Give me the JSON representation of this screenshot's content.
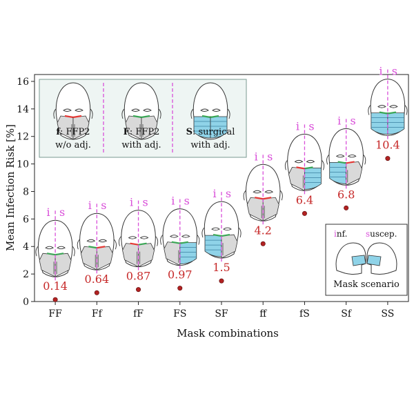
{
  "chart_data": {
    "type": "scatter",
    "xlabel": "Mask combinations",
    "ylabel": "Mean Infection Risk [%]",
    "ylim": [
      0,
      16.5
    ],
    "yticks": [
      0,
      2,
      4,
      6,
      8,
      10,
      12,
      14,
      16
    ],
    "categories": [
      "FF",
      "Ff",
      "fF",
      "FS",
      "SF",
      "ff",
      "fS",
      "Sf",
      "SS"
    ],
    "values": [
      0.14,
      0.64,
      0.87,
      0.97,
      1.5,
      4.2,
      6.4,
      6.8,
      10.4
    ],
    "value_labels": [
      "0.14",
      "0.64",
      "0.87",
      "0.97",
      "1.5",
      "4.2",
      "6.4",
      "6.8",
      "10.4"
    ],
    "point_color": "#b22222",
    "label_color": "#c62828",
    "divider_color": "#d94fd9",
    "mask_pairs": [
      [
        "ffp2_adj",
        "ffp2_adj"
      ],
      [
        "ffp2_adj",
        "ffp2"
      ],
      [
        "ffp2",
        "ffp2_adj"
      ],
      [
        "ffp2_adj",
        "surgical"
      ],
      [
        "surgical",
        "ffp2_adj"
      ],
      [
        "ffp2",
        "ffp2"
      ],
      [
        "ffp2",
        "surgical"
      ],
      [
        "surgical",
        "ffp2"
      ],
      [
        "surgical",
        "surgical"
      ]
    ],
    "divider_letters": [
      "i",
      "s"
    ],
    "legend": {
      "items": [
        {
          "letter": "f",
          "line1": ": FFP2",
          "line2": "w/o adj.",
          "mask": "ffp2"
        },
        {
          "letter": "F",
          "line1": ": FFP2",
          "line2": "with adj.",
          "mask": "ffp2_adj"
        },
        {
          "letter": "S",
          "line1": ": surgical",
          "line2": "with adj.",
          "mask": "surgical"
        }
      ]
    },
    "scenario": {
      "inf_first": "i",
      "inf_rest": "nf.",
      "sus_first": "s",
      "sus_rest": "uscep.",
      "caption": "Mask scenario"
    },
    "mask_colors": {
      "ffp2_fill": "#d9d9d9",
      "surgical_fill": "#8fd3e8",
      "adj_clip": "#3aa655",
      "noadj_clip": "#e53935",
      "legend_bg": "#eef5f3",
      "legend_border": "#7a9a92"
    }
  }
}
